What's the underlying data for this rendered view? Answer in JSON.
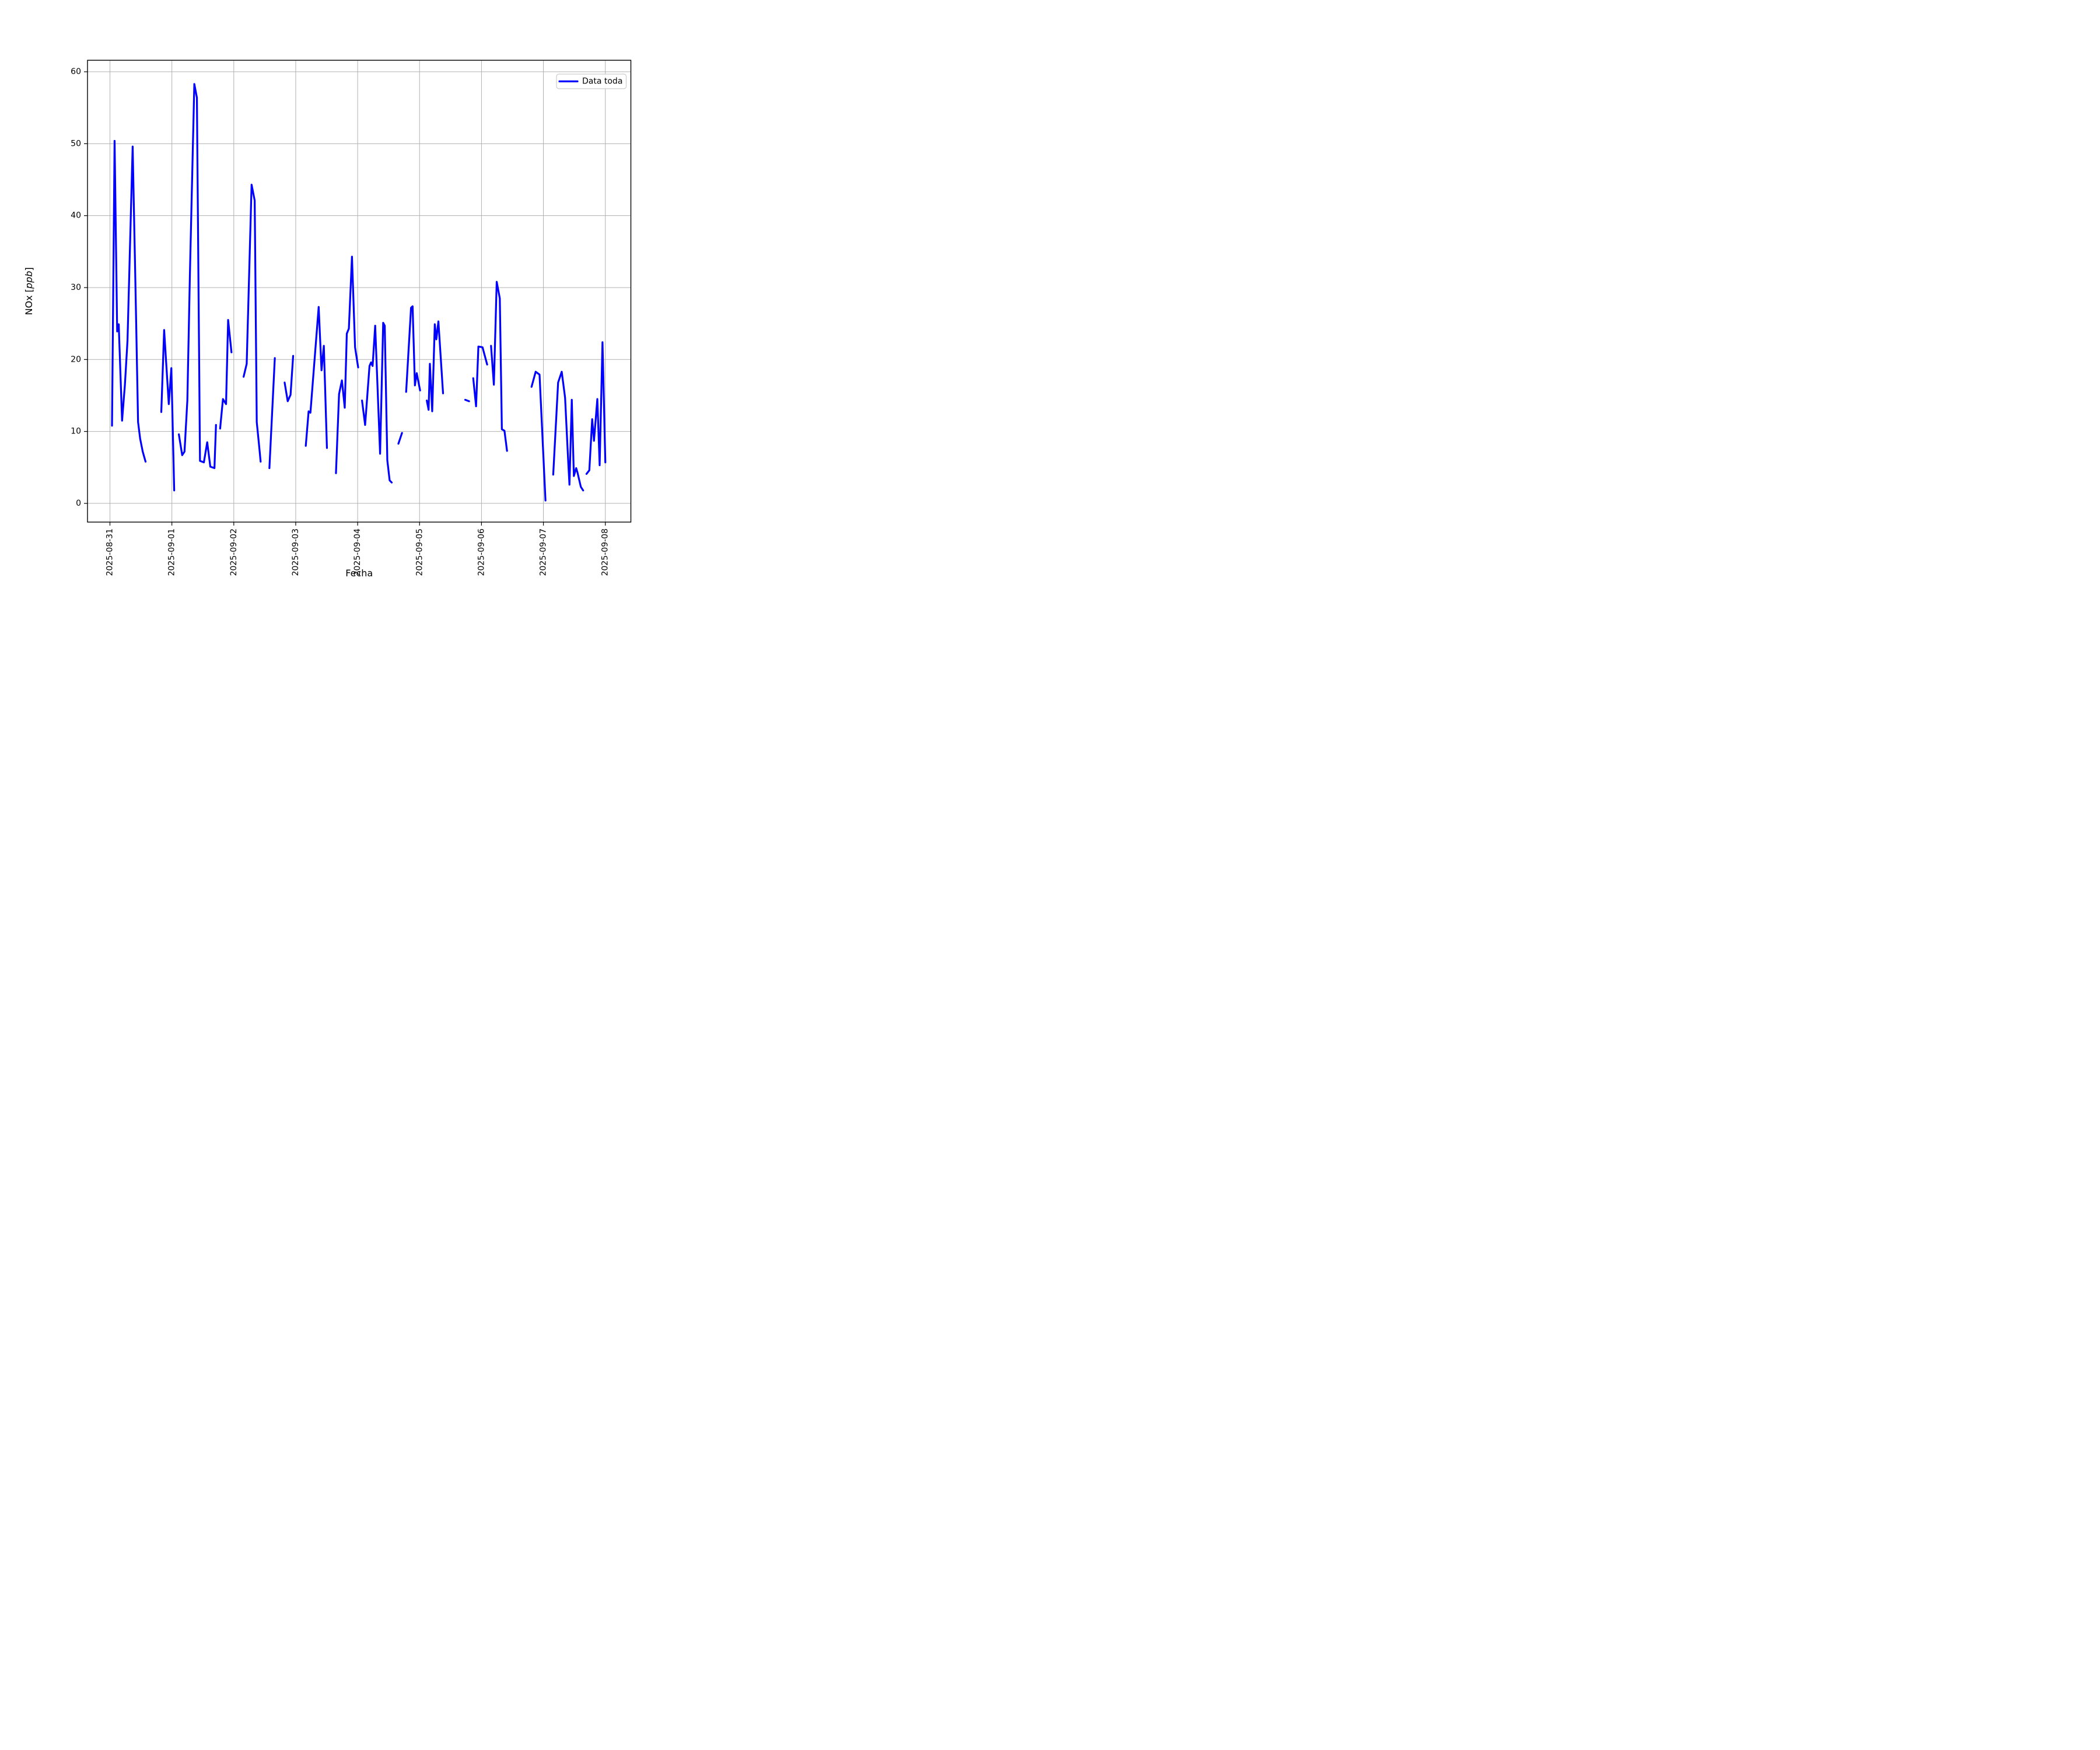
{
  "chart_data": {
    "type": "line",
    "title": "",
    "xlabel": "Fecha",
    "ylabel_prefix": "NOx [",
    "ylabel_italic": "ppb",
    "ylabel_suffix": "]",
    "legend": {
      "label": "Data toda",
      "position": "upper right"
    },
    "colors": {
      "line": "#0000ff",
      "grid": "#b0b0b0",
      "frame": "#000000",
      "legend_edge": "#cccccc",
      "background": "#ffffff"
    },
    "x_axis": {
      "unit": "hours since 2025-08-31 00:00",
      "range": [
        -8.7,
        201.9
      ],
      "tick_hours": [
        0,
        24,
        48,
        72,
        96,
        120,
        144,
        168,
        192
      ],
      "tick_labels": [
        "2025-08-31",
        "2025-09-01",
        "2025-09-02",
        "2025-09-03",
        "2025-09-04",
        "2025-09-05",
        "2025-09-06",
        "2025-09-07",
        "2025-09-08"
      ],
      "tick_label_rotation": 90
    },
    "y_axis": {
      "range": [
        -2.6,
        61.6
      ],
      "ticks": [
        0,
        10,
        20,
        30,
        40,
        50,
        60
      ],
      "tick_labels": [
        "0",
        "10",
        "20",
        "30",
        "40",
        "50",
        "60"
      ]
    },
    "grid": {
      "on": true
    },
    "series": [
      {
        "name": "Data toda",
        "segments": [
          [
            [
              0.8,
              10.8
            ],
            [
              1.8,
              50.4
            ],
            [
              2.8,
              23.9
            ],
            [
              3.4,
              24.9
            ],
            [
              4.7,
              11.5
            ],
            [
              5.8,
              16.5
            ],
            [
              6.8,
              22.6
            ],
            [
              8.8,
              49.6
            ],
            [
              9.9,
              30.0
            ],
            [
              10.9,
              11.3
            ],
            [
              11.7,
              9.0
            ],
            [
              12.7,
              7.2
            ],
            [
              13.8,
              5.8
            ]
          ],
          [
            [
              19.9,
              12.7
            ],
            [
              21.0,
              24.1
            ],
            [
              22.8,
              13.8
            ],
            [
              23.8,
              18.8
            ],
            [
              24.9,
              1.8
            ]
          ],
          [
            [
              26.7,
              9.6
            ],
            [
              28.0,
              6.7
            ],
            [
              28.9,
              7.2
            ],
            [
              30.0,
              14.3
            ],
            [
              31.0,
              32.0
            ],
            [
              32.7,
              58.3
            ],
            [
              33.7,
              56.4
            ],
            [
              34.9,
              5.9
            ],
            [
              36.4,
              5.7
            ],
            [
              37.7,
              8.5
            ],
            [
              38.9,
              5.1
            ],
            [
              40.5,
              4.9
            ],
            [
              41.1,
              10.9
            ]
          ],
          [
            [
              42.7,
              10.4
            ],
            [
              43.8,
              14.5
            ],
            [
              45.0,
              13.8
            ],
            [
              45.8,
              25.5
            ],
            [
              47.1,
              21.0
            ]
          ],
          [
            [
              51.8,
              17.6
            ],
            [
              53.0,
              19.4
            ],
            [
              54.9,
              44.3
            ],
            [
              56.1,
              42.1
            ],
            [
              56.9,
              11.3
            ],
            [
              57.9,
              7.7
            ],
            [
              58.4,
              5.8
            ]
          ],
          [
            [
              61.8,
              4.9
            ],
            [
              63.9,
              20.2
            ]
          ],
          [
            [
              67.7,
              16.8
            ],
            [
              68.9,
              14.2
            ],
            [
              70.0,
              15.1
            ],
            [
              71.0,
              20.5
            ]
          ],
          [
            [
              75.9,
              8.0
            ],
            [
              77.0,
              12.8
            ],
            [
              77.7,
              12.6
            ],
            [
              80.9,
              27.3
            ],
            [
              82.0,
              18.5
            ],
            [
              82.9,
              21.9
            ],
            [
              84.1,
              7.7
            ]
          ],
          [
            [
              87.6,
              4.2
            ],
            [
              88.8,
              15.2
            ],
            [
              89.9,
              17.1
            ],
            [
              91.0,
              13.3
            ],
            [
              91.8,
              23.6
            ],
            [
              92.6,
              24.3
            ],
            [
              93.8,
              34.3
            ],
            [
              95.0,
              21.7
            ],
            [
              96.2,
              18.9
            ]
          ],
          [
            [
              97.7,
              14.3
            ],
            [
              98.9,
              10.9
            ],
            [
              100.6,
              19.1
            ],
            [
              101.2,
              19.6
            ],
            [
              101.8,
              19.1
            ],
            [
              102.8,
              24.7
            ],
            [
              104.7,
              6.9
            ],
            [
              105.9,
              25.1
            ],
            [
              106.5,
              24.7
            ],
            [
              107.5,
              6.0
            ],
            [
              108.4,
              3.2
            ],
            [
              109.2,
              2.9
            ]
          ],
          [
            [
              111.8,
              8.3
            ],
            [
              113.2,
              9.8
            ]
          ],
          [
            [
              114.8,
              15.5
            ],
            [
              116.7,
              27.2
            ],
            [
              117.3,
              27.4
            ],
            [
              118.2,
              16.4
            ],
            [
              118.9,
              18.1
            ],
            [
              120.2,
              15.7
            ]
          ],
          [
            [
              122.8,
              14.3
            ],
            [
              123.5,
              13.0
            ],
            [
              124.0,
              19.4
            ],
            [
              124.9,
              12.8
            ],
            [
              125.9,
              24.9
            ],
            [
              126.5,
              22.8
            ],
            [
              127.3,
              25.3
            ],
            [
              129.1,
              15.3
            ]
          ],
          [
            [
              137.7,
              14.4
            ],
            [
              139.2,
              14.2
            ]
          ],
          [
            [
              140.8,
              17.4
            ],
            [
              141.9,
              13.5
            ],
            [
              142.8,
              21.8
            ],
            [
              144.4,
              21.7
            ],
            [
              146.2,
              19.3
            ]
          ],
          [
            [
              147.7,
              21.9
            ],
            [
              148.8,
              16.5
            ],
            [
              149.9,
              30.8
            ],
            [
              151.1,
              28.5
            ],
            [
              151.9,
              10.3
            ],
            [
              152.9,
              10.1
            ],
            [
              153.9,
              7.3
            ]
          ],
          [
            [
              163.4,
              16.2
            ],
            [
              165.0,
              18.3
            ],
            [
              166.5,
              17.9
            ],
            [
              168.8,
              0.4
            ]
          ],
          [
            [
              171.8,
              4.0
            ],
            [
              173.7,
              16.8
            ],
            [
              175.1,
              18.3
            ],
            [
              176.4,
              14.7
            ],
            [
              177.6,
              5.9
            ],
            [
              178.1,
              2.6
            ],
            [
              179.0,
              14.4
            ],
            [
              179.8,
              3.8
            ],
            [
              180.7,
              4.9
            ],
            [
              181.2,
              4.3
            ],
            [
              182.5,
              2.3
            ],
            [
              183.4,
              1.8
            ]
          ],
          [
            [
              184.7,
              4.1
            ],
            [
              185.8,
              4.6
            ],
            [
              186.9,
              11.7
            ],
            [
              187.6,
              8.7
            ],
            [
              188.9,
              14.5
            ],
            [
              189.8,
              5.3
            ],
            [
              190.9,
              22.4
            ],
            [
              192.0,
              5.7
            ]
          ]
        ]
      }
    ]
  }
}
